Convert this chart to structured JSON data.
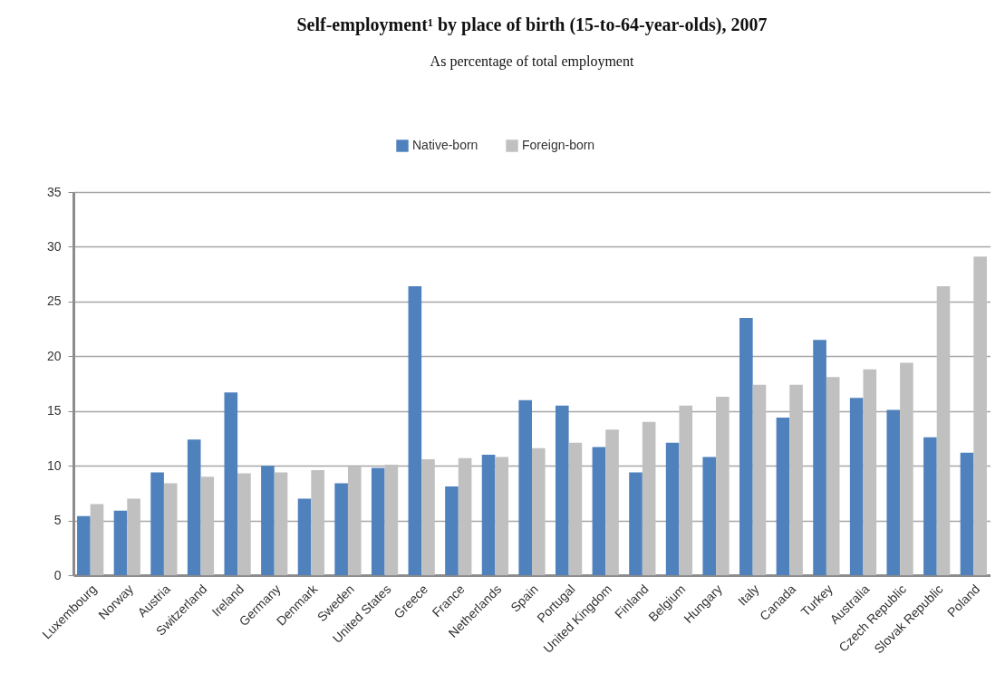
{
  "chart_data": {
    "type": "bar",
    "title": "Self-employment¹ by place of birth (15-to-64-year-olds), 2007",
    "subtitle": "As percentage of total employment",
    "categories": [
      "Luxembourg",
      "Norway",
      "Austria",
      "Switzerland",
      "Ireland",
      "Germany",
      "Denmark",
      "Sweden",
      "United States",
      "Greece",
      "France",
      "Netherlands",
      "Spain",
      "Portugal",
      "United Kingdom",
      "Finland",
      "Belgium",
      "Hungary",
      "Italy",
      "Canada",
      "Turkey",
      "Australia",
      "Czech Republic",
      "Slovak Republic",
      "Poland"
    ],
    "series": [
      {
        "name": "Native-born",
        "color": "#4f81bd",
        "values": [
          5.4,
          5.9,
          9.4,
          12.4,
          16.7,
          10.0,
          7.0,
          8.4,
          9.8,
          26.4,
          8.1,
          11.0,
          16.0,
          15.5,
          11.7,
          9.4,
          12.1,
          10.8,
          23.5,
          14.4,
          21.5,
          16.2,
          15.1,
          12.6,
          11.2
        ]
      },
      {
        "name": "Foreign-born",
        "color": "#c0c0c0",
        "values": [
          6.5,
          7.0,
          8.4,
          9.0,
          9.3,
          9.4,
          9.6,
          9.9,
          10.1,
          10.6,
          10.7,
          10.8,
          11.6,
          12.1,
          13.3,
          14.0,
          15.5,
          16.3,
          17.4,
          17.4,
          18.1,
          18.8,
          19.4,
          26.4,
          29.1
        ]
      }
    ],
    "ylim": [
      0,
      35
    ],
    "yticks": [
      0,
      5,
      10,
      15,
      20,
      25,
      30,
      35
    ],
    "grid": "y",
    "legend": "top"
  }
}
